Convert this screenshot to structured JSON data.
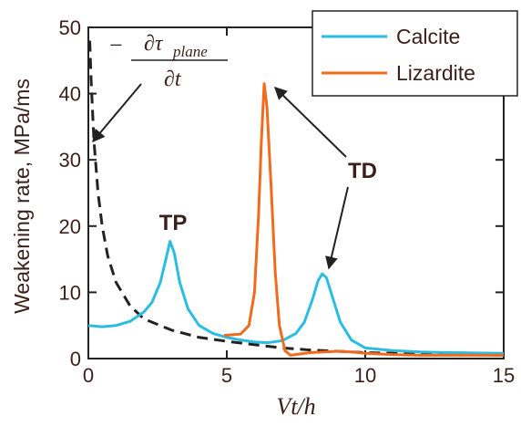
{
  "chart_data": {
    "type": "line",
    "xlabel": "Vt/h",
    "ylabel": "Weakening rate, MPa/ms",
    "xlim": [
      0,
      15
    ],
    "xticks": [
      0,
      5,
      10,
      15
    ],
    "ylim": [
      0,
      50
    ],
    "yticks": [
      0,
      10,
      20,
      30,
      40,
      50
    ],
    "legend": "upper right",
    "series": [
      {
        "name": "Calcite",
        "color": "#2bbde0",
        "x": [
          0,
          0.5,
          1,
          1.5,
          2,
          2.3,
          2.6,
          2.8,
          2.95,
          3.1,
          3.3,
          3.6,
          4,
          4.5,
          5,
          5.5,
          6,
          6.5,
          7,
          7.5,
          7.8,
          8.1,
          8.3,
          8.45,
          8.6,
          8.8,
          9.1,
          9.5,
          10,
          11,
          12,
          13,
          14,
          15
        ],
        "values": [
          5,
          4.8,
          5,
          5.6,
          7,
          8.5,
          11.5,
          15,
          17.7,
          16,
          11.5,
          7.5,
          5,
          3.8,
          3.2,
          2.8,
          2.5,
          2.4,
          2.7,
          3.8,
          5.5,
          9,
          11.8,
          12.8,
          12.2,
          9.5,
          5.5,
          2.8,
          1.6,
          1.2,
          1.0,
          0.9,
          0.85,
          0.8
        ]
      },
      {
        "name": "Lizardite",
        "color": "#f26b1d",
        "x": [
          4.9,
          5.5,
          5.8,
          6.0,
          6.15,
          6.25,
          6.35,
          6.45,
          6.6,
          6.75,
          6.9,
          7.1,
          7.3,
          8,
          9,
          9.5,
          10,
          11,
          12,
          13,
          14,
          15
        ],
        "values": [
          3.5,
          3.7,
          5,
          10,
          22,
          33,
          41.5,
          38,
          26,
          13,
          5,
          1.2,
          0.5,
          0.9,
          1.1,
          1.0,
          0.8,
          0.6,
          0.5,
          0.5,
          0.5,
          0.5
        ]
      }
    ],
    "dashed_series": {
      "color": "#222222",
      "x": [
        0.05,
        0.1,
        0.2,
        0.35,
        0.5,
        0.7,
        1,
        1.5,
        2,
        3,
        4,
        5,
        6,
        7,
        8,
        9,
        10,
        12,
        15
      ],
      "values": [
        48,
        42,
        33,
        25,
        20,
        15.5,
        11.5,
        8,
        6,
        4.3,
        3.2,
        2.6,
        2.1,
        1.6,
        1.3,
        1.1,
        0.9,
        0.7,
        0.5
      ]
    },
    "annotations": {
      "dashed_label": {
        "minus": "−",
        "numerator": "∂τ",
        "subscript": "plane",
        "denominator": "∂t"
      },
      "tp": "TP",
      "td": "TD"
    }
  }
}
